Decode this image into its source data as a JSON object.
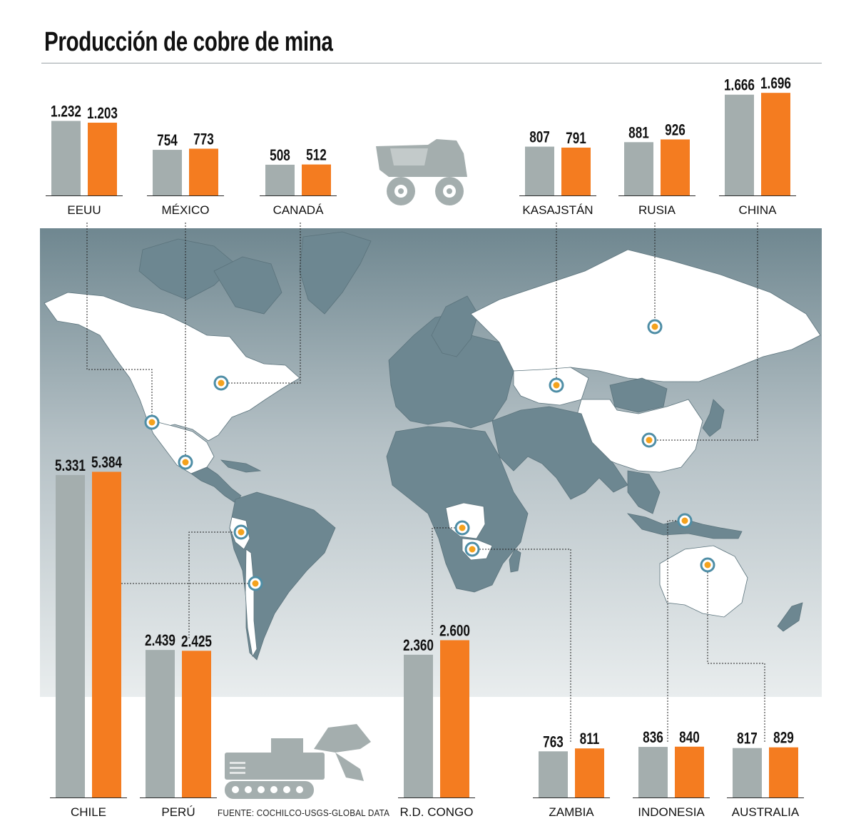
{
  "title": "Producción de cobre de mina",
  "source": "FUENTE: COCHILCO-USGS-GLOBAL DATA",
  "colors": {
    "series_a": "#a4aeae",
    "series_b": "#f47c20",
    "map_land": "#6d8791",
    "map_highlight": "#ffffff",
    "marker_ring": "#4f8ea6",
    "marker_dot": "#f5a21d"
  },
  "icons": [
    "mining-truck-icon",
    "excavator-icon"
  ],
  "chart_data": {
    "type": "bar",
    "title": "Producción de cobre de mina",
    "value_format": "thousands separator '.'",
    "groups": [
      {
        "country": "EEUU",
        "values": [
          1232,
          1203
        ],
        "labels": [
          "1.232",
          "1.203"
        ]
      },
      {
        "country": "MÉXICO",
        "values": [
          754,
          773
        ],
        "labels": [
          "754",
          "773"
        ]
      },
      {
        "country": "CANADÁ",
        "values": [
          508,
          512
        ],
        "labels": [
          "508",
          "512"
        ]
      },
      {
        "country": "KASAJSTÁN",
        "values": [
          807,
          791
        ],
        "labels": [
          "807",
          "791"
        ]
      },
      {
        "country": "RUSIA",
        "values": [
          881,
          926
        ],
        "labels": [
          "881",
          "926"
        ]
      },
      {
        "country": "CHINA",
        "values": [
          1666,
          1696
        ],
        "labels": [
          "1.666",
          "1.696"
        ]
      },
      {
        "country": "CHILE",
        "values": [
          5331,
          5384
        ],
        "labels": [
          "5.331",
          "5.384"
        ]
      },
      {
        "country": "PERÚ",
        "values": [
          2439,
          2425
        ],
        "labels": [
          "2.439",
          "2.425"
        ]
      },
      {
        "country": "R.D. CONGO",
        "values": [
          2360,
          2600
        ],
        "labels": [
          "2.360",
          "2.600"
        ]
      },
      {
        "country": "ZAMBIA",
        "values": [
          763,
          811
        ],
        "labels": [
          "763",
          "811"
        ]
      },
      {
        "country": "INDONESIA",
        "values": [
          836,
          840
        ],
        "labels": [
          "836",
          "840"
        ]
      },
      {
        "country": "AUSTRALIA",
        "values": [
          817,
          829
        ],
        "labels": [
          "817",
          "829"
        ]
      }
    ]
  }
}
